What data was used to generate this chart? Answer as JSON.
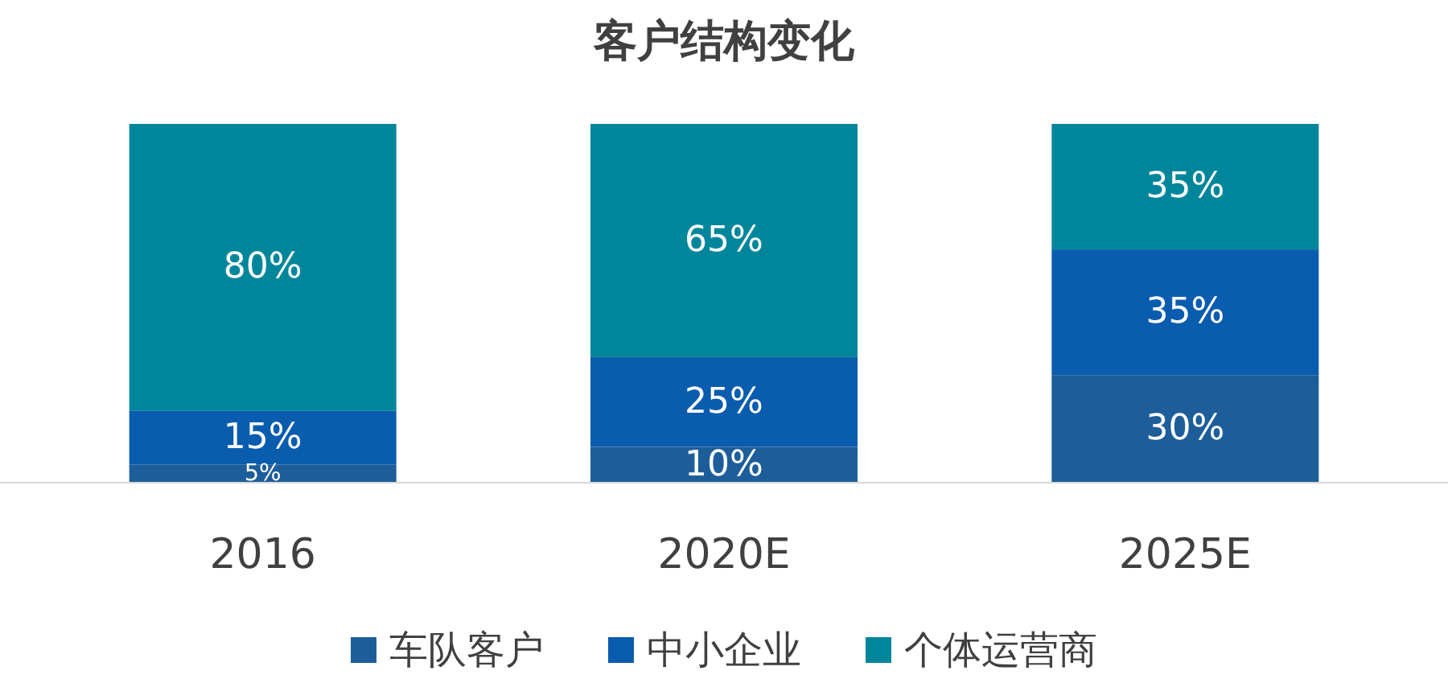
{
  "chart_data": {
    "type": "bar",
    "title": "客户结构变化",
    "categories": [
      "2016",
      "2020E",
      "2025E"
    ],
    "stacked": true,
    "legend": "bottom",
    "series": [
      {
        "name": "车队客户",
        "color": "#1d5e9a",
        "values": [
          5,
          10,
          30
        ],
        "value_labels": [
          "5%",
          "10%",
          "30%"
        ]
      },
      {
        "name": "中小企业",
        "color": "#0a5cae",
        "values": [
          15,
          25,
          35
        ],
        "value_labels": [
          "15%",
          "25%",
          "35%"
        ]
      },
      {
        "name": "个体运营商",
        "color": "#00869b",
        "values": [
          80,
          65,
          35
        ],
        "value_labels": [
          "80%",
          "65%",
          "35%"
        ]
      }
    ]
  }
}
